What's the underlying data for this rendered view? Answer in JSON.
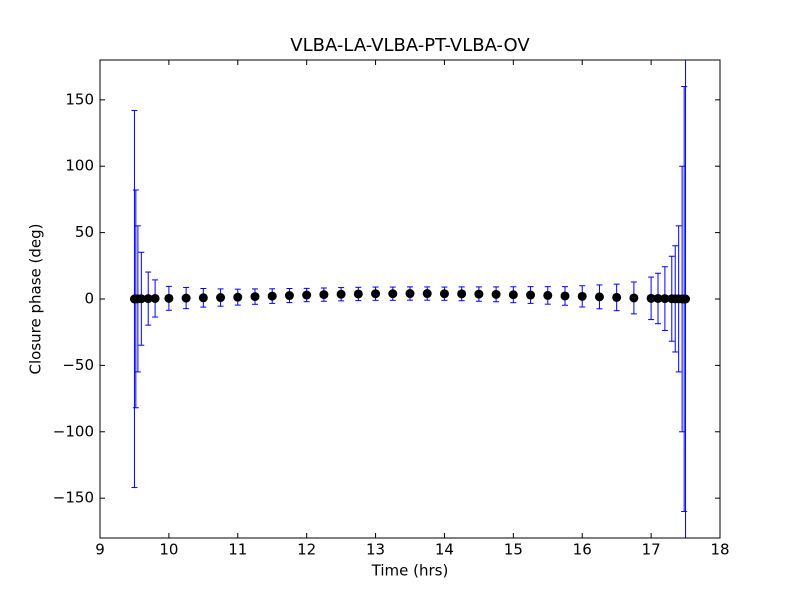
{
  "chart_data": {
    "type": "errorbar",
    "title": "VLBA-LA-VLBA-PT-VLBA-OV",
    "x_label": "Time (hrs)",
    "y_label": "Closure phase (deg)",
    "x": [
      9.5,
      9.52,
      9.55,
      9.6,
      9.7,
      9.8,
      10.0,
      10.25,
      10.5,
      10.75,
      11.0,
      11.25,
      11.5,
      11.75,
      12.0,
      12.25,
      12.5,
      12.75,
      13.0,
      13.25,
      13.5,
      13.75,
      14.0,
      14.25,
      14.5,
      14.75,
      15.0,
      15.25,
      15.5,
      15.75,
      16.0,
      16.25,
      16.5,
      16.75,
      17.0,
      17.1,
      17.2,
      17.3,
      17.35,
      17.4,
      17.45,
      17.48,
      17.5
    ],
    "values": [
      0,
      0.1,
      0.1,
      0.2,
      0.3,
      0.4,
      0.5,
      0.7,
      0.9,
      1.1,
      1.4,
      1.8,
      2.2,
      2.6,
      3.0,
      3.3,
      3.6,
      3.8,
      4.0,
      4.0,
      4.1,
      4.1,
      4.0,
      3.9,
      3.7,
      3.5,
      3.2,
      3.0,
      2.7,
      2.3,
      2.0,
      1.6,
      1.2,
      0.8,
      0.5,
      0.4,
      0.3,
      0.2,
      0.1,
      0.1,
      0,
      0,
      0
    ],
    "errors": [
      142,
      82,
      55,
      35,
      20,
      14,
      9,
      8,
      7,
      6.5,
      6,
      5.8,
      5.5,
      5.3,
      5,
      5,
      5,
      5,
      5,
      5,
      5,
      5,
      5,
      5.2,
      5.4,
      5.6,
      6,
      6.3,
      6.6,
      7,
      8,
      9,
      10,
      12,
      16,
      19,
      24,
      32,
      40,
      55,
      100,
      160,
      200
    ],
    "color": "#0000ff",
    "marker_color": "#000000",
    "xlim": [
      9,
      18
    ],
    "xticks": [
      9,
      10,
      11,
      12,
      13,
      14,
      15,
      16,
      17,
      18
    ],
    "ylim": [
      -180,
      180
    ],
    "yticks": [
      {
        "value": -150,
        "label": "−150"
      },
      {
        "value": -100,
        "label": "−100"
      },
      {
        "value": -50,
        "label": "−50"
      },
      0,
      50,
      100,
      150
    ]
  }
}
